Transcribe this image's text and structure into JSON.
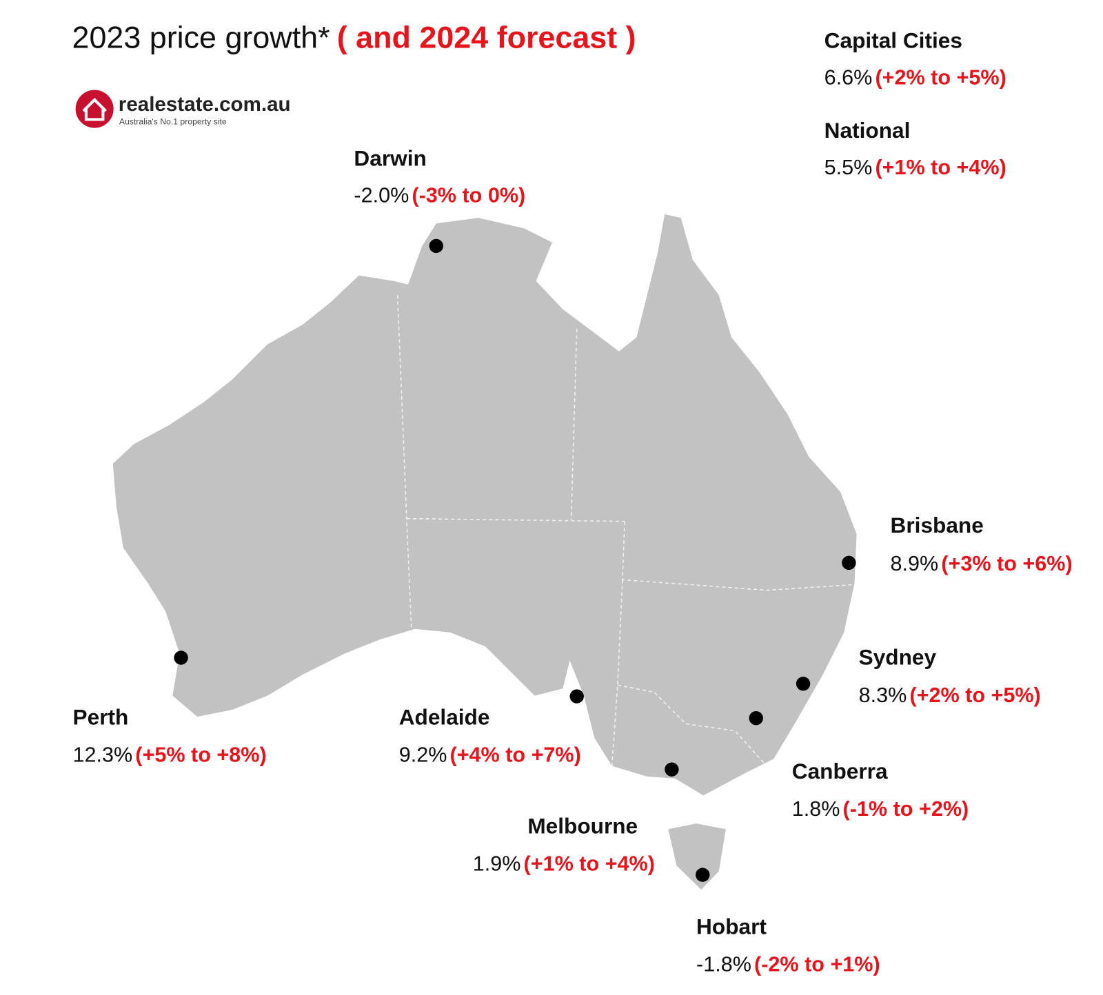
{
  "header": {
    "title": "2023 price growth*",
    "title_highlight": "( and 2024 forecast )"
  },
  "logo": {
    "name": "realestate.com.au",
    "tagline": "Australia's No.1 property site"
  },
  "summary": [
    {
      "name": "Capital Cities",
      "growth": "6.6%",
      "forecast": "(+2% to +5%)"
    },
    {
      "name": "National",
      "growth": "5.5%",
      "forecast": "(+1% to +4%)"
    }
  ],
  "cities": [
    {
      "name": "Darwin",
      "growth": "-2.0%",
      "forecast": "(-3% to 0%)"
    },
    {
      "name": "Brisbane",
      "growth": "8.9%",
      "forecast": "(+3% to +6%)"
    },
    {
      "name": "Sydney",
      "growth": "8.3%",
      "forecast": "(+2% to +5%)"
    },
    {
      "name": "Canberra",
      "growth": "1.8%",
      "forecast": "(-1% to +2%)"
    },
    {
      "name": "Perth",
      "growth": "12.3%",
      "forecast": "(+5% to +8%)"
    },
    {
      "name": "Adelaide",
      "growth": "9.2%",
      "forecast": "(+4% to +7%)"
    },
    {
      "name": "Melbourne",
      "growth": "1.9%",
      "forecast": "(+1% to +4%)"
    },
    {
      "name": "Hobart",
      "growth": "-1.8%",
      "forecast": "(-2% to +1%)"
    }
  ]
}
